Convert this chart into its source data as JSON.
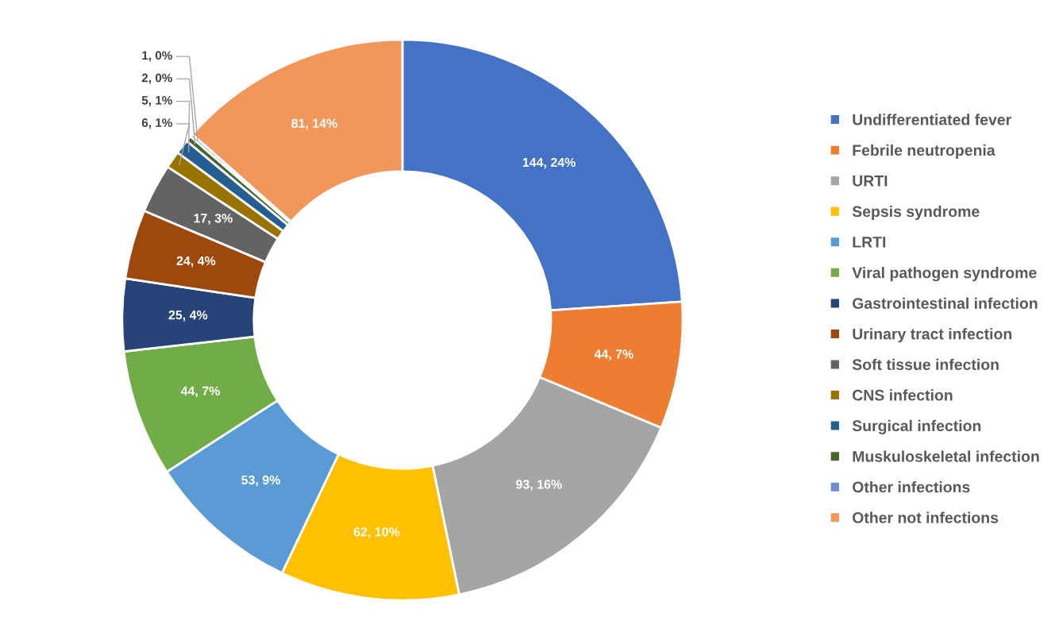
{
  "chart_data": {
    "type": "donut",
    "categories": [
      "Undifferentiated fever",
      "Febrile neutropenia",
      "URTI",
      "Sepsis syndrome",
      "LRTI",
      "Viral pathogen syndrome",
      "Gastrointestinal infection",
      "Urinary tract infection",
      "Soft tissue infection",
      "CNS infection",
      "Surgical infection",
      "Muskuloskeletal infection",
      "Other infections",
      "Other not infections"
    ],
    "values": [
      144,
      44,
      93,
      62,
      53,
      44,
      25,
      24,
      17,
      6,
      5,
      2,
      1,
      81
    ],
    "value_labels": [
      "144, 24%",
      "44, 7%",
      "93, 16%",
      "62, 10%",
      "53, 9%",
      "44, 7%",
      "25, 4%",
      "24, 4%",
      "17, 3%",
      "6, 1%",
      "5, 1%",
      "2, 0%",
      "1, 0%",
      "81, 14%"
    ],
    "colors": [
      "#4472c4",
      "#ed7d31",
      "#a5a5a5",
      "#ffc000",
      "#5b9bd5",
      "#70ad47",
      "#264478",
      "#9e480e",
      "#636363",
      "#997300",
      "#255e91",
      "#43682b",
      "#698ed0",
      "#f1975a"
    ],
    "legend": "right"
  }
}
